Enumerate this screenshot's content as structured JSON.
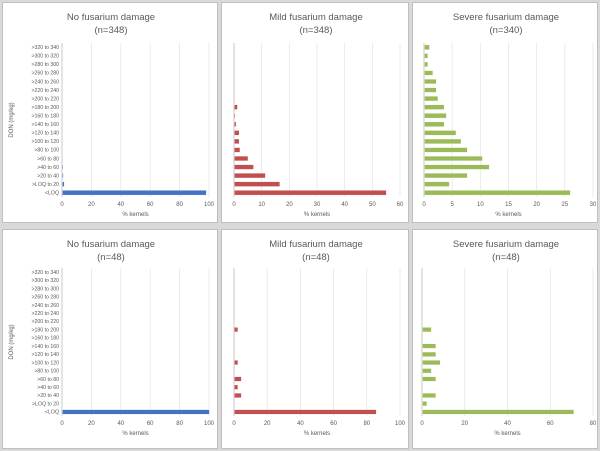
{
  "chart_data": [
    {
      "type": "bar",
      "orientation": "horizontal",
      "title": "No fusarium damage",
      "subtitle": "(n=348)",
      "xlabel": "% kernels",
      "ylabel": "DON (mg/kg)",
      "xlim": [
        0,
        100
      ],
      "xticks": [
        0,
        20,
        40,
        60,
        80,
        100
      ],
      "color": "#4472c4",
      "categories": [
        ">320 to 340",
        ">300 to 320",
        ">280 to 300",
        ">260 to 280",
        ">240 to 260",
        ">220 to 240",
        ">200 to 220",
        ">180 to 200",
        ">160 to 180",
        ">140 to 160",
        ">120 to 140",
        ">100 to 120",
        ">80 to 100",
        ">60 to 80",
        ">40 to 60",
        ">20 to 40",
        ">LOQ to 20",
        "<LOQ"
      ],
      "values": [
        0,
        0,
        0,
        0,
        0,
        0,
        0,
        0,
        0,
        0,
        0,
        0,
        0,
        0,
        0.3,
        0.6,
        1.2,
        97.9
      ]
    },
    {
      "type": "bar",
      "orientation": "horizontal",
      "title": "Mild fusarium damage",
      "subtitle": "(n=348)",
      "xlabel": "% kernels",
      "ylabel": "",
      "xlim": [
        0,
        60
      ],
      "xticks": [
        0,
        10,
        20,
        30,
        40,
        50,
        60
      ],
      "color": "#c0504d",
      "categories": [
        ">320 to 340",
        ">300 to 320",
        ">280 to 300",
        ">260 to 280",
        ">240 to 260",
        ">220 to 240",
        ">200 to 220",
        ">180 to 200",
        ">160 to 180",
        ">140 to 160",
        ">120 to 140",
        ">100 to 120",
        ">80 to 100",
        ">60 to 80",
        ">40 to 60",
        ">20 to 40",
        ">LOQ to 20",
        "<LOQ"
      ],
      "values": [
        0,
        0,
        0,
        0,
        0,
        0,
        0,
        1.1,
        0.3,
        0.6,
        1.7,
        1.7,
        2.0,
        4.9,
        6.9,
        11.2,
        16.4,
        54.9
      ]
    },
    {
      "type": "bar",
      "orientation": "horizontal",
      "title": "Severe fusarium damage",
      "subtitle": "(n=340)",
      "xlabel": "% kernels",
      "ylabel": "",
      "xlim": [
        0,
        30
      ],
      "xticks": [
        0,
        5,
        10,
        15,
        20,
        25,
        30
      ],
      "color": "#9bbb59",
      "categories": [
        ">320 to 340",
        ">300 to 320",
        ">280 to 300",
        ">260 to 280",
        ">240 to 260",
        ">220 to 240",
        ">200 to 220",
        ">180 to 200",
        ">160 to 180",
        ">140 to 160",
        ">120 to 140",
        ">100 to 120",
        ">80 to 100",
        ">60 to 80",
        ">40 to 60",
        ">20 to 40",
        ">LOQ to 20",
        "<LOQ"
      ],
      "values": [
        0.9,
        0.6,
        0.6,
        1.5,
        2.1,
        2.1,
        2.4,
        3.5,
        3.9,
        3.5,
        5.6,
        6.5,
        7.6,
        10.3,
        11.5,
        7.6,
        4.4,
        25.9
      ]
    },
    {
      "type": "bar",
      "orientation": "horizontal",
      "title": "No fusarium damage",
      "subtitle": "(n=48)",
      "xlabel": "% kernels",
      "ylabel": "DON (mg/kg)",
      "xlim": [
        0,
        100
      ],
      "xticks": [
        0,
        20,
        40,
        60,
        80,
        100
      ],
      "color": "#4472c4",
      "categories": [
        ">320 to 340",
        ">300 to 320",
        ">280 to 300",
        ">260 to 280",
        ">240 to 260",
        ">220 to 240",
        ">200 to 220",
        ">180 to 200",
        ">160 to 180",
        ">140 to 160",
        ">120 to 140",
        ">100 to 120",
        ">80 to 100",
        ">60 to 80",
        ">40 to 60",
        ">20 to 40",
        ">LOQ to 20",
        "<LOQ"
      ],
      "values": [
        0,
        0,
        0,
        0,
        0,
        0,
        0,
        0,
        0,
        0,
        0,
        0,
        0,
        0,
        0,
        0,
        0,
        100
      ]
    },
    {
      "type": "bar",
      "orientation": "horizontal",
      "title": "Mild fusarium damage",
      "subtitle": "(n=48)",
      "xlabel": "% kernels",
      "ylabel": "",
      "xlim": [
        0,
        100
      ],
      "xticks": [
        0,
        20,
        40,
        60,
        80,
        100
      ],
      "color": "#c0504d",
      "categories": [
        ">320 to 340",
        ">300 to 320",
        ">280 to 300",
        ">260 to 280",
        ">240 to 260",
        ">220 to 240",
        ">200 to 220",
        ">180 to 200",
        ">160 to 180",
        ">140 to 160",
        ">120 to 140",
        ">100 to 120",
        ">80 to 100",
        ">60 to 80",
        ">40 to 60",
        ">20 to 40",
        ">LOQ to 20",
        "<LOQ"
      ],
      "values": [
        0,
        0,
        0,
        0,
        0,
        0,
        0,
        2.1,
        0,
        0,
        0,
        2.1,
        0,
        4.2,
        2.1,
        4.2,
        0,
        85.4
      ]
    },
    {
      "type": "bar",
      "orientation": "horizontal",
      "title": "Severe fusarium damage",
      "subtitle": "(n=48)",
      "xlabel": "% kernels",
      "ylabel": "",
      "xlim": [
        0,
        80
      ],
      "xticks": [
        0,
        20,
        40,
        60,
        80
      ],
      "color": "#9bbb59",
      "categories": [
        ">320 to 340",
        ">300 to 320",
        ">280 to 300",
        ">260 to 280",
        ">240 to 260",
        ">220 to 240",
        ">200 to 220",
        ">180 to 200",
        ">160 to 180",
        ">140 to 160",
        ">120 to 140",
        ">100 to 120",
        ">80 to 100",
        ">60 to 80",
        ">40 to 60",
        ">20 to 40",
        ">LOQ to 20",
        "<LOQ"
      ],
      "values": [
        0,
        0,
        0,
        0,
        0,
        0,
        0,
        4.2,
        0,
        6.3,
        6.3,
        8.3,
        4.2,
        6.3,
        0,
        6.3,
        2.1,
        70.8
      ]
    }
  ]
}
